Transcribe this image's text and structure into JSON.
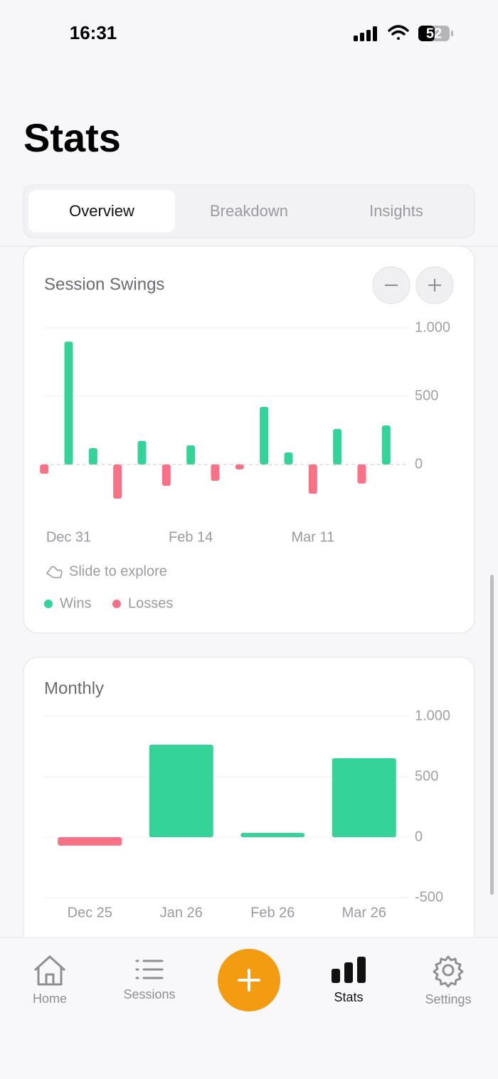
{
  "status_bar": {
    "time": "16:31",
    "battery": "52"
  },
  "header": {
    "title": "Stats"
  },
  "tabs": [
    "Overview",
    "Breakdown",
    "Insights"
  ],
  "chart_data": [
    {
      "type": "bar",
      "title": "Session Swings",
      "categories": [
        null,
        "Dec 31",
        null,
        null,
        null,
        null,
        "Feb 14",
        null,
        null,
        null,
        null,
        "Mar 11",
        null,
        null,
        null
      ],
      "series": [
        {
          "name": "Wins",
          "color": "#34d399",
          "values": [
            null,
            900,
            120,
            null,
            172,
            null,
            140,
            null,
            null,
            422,
            88,
            null,
            260,
            null,
            286
          ]
        },
        {
          "name": "Losses",
          "color": "#f87186",
          "values": [
            -68,
            null,
            null,
            -250,
            null,
            -156,
            null,
            -120,
            -36,
            null,
            null,
            -214,
            null,
            -140,
            null
          ]
        }
      ],
      "ylim": [
        -500,
        1000
      ],
      "yticks": [
        {
          "value": 1000,
          "label": "1.000"
        },
        500,
        0
      ],
      "grid": true,
      "hint": "Slide to explore"
    },
    {
      "type": "bar",
      "title": "Monthly",
      "categories": [
        "Dec 25",
        "Jan 26",
        "Feb 26",
        "Mar 26"
      ],
      "values": [
        -70,
        765,
        35,
        653
      ],
      "color": "#34d399",
      "negative_color": "#f87186",
      "ylim": [
        -500,
        1000
      ],
      "yticks": [
        {
          "value": 1000,
          "label": "1.000"
        },
        500,
        0,
        -500
      ],
      "grid": true
    }
  ],
  "tab_bar": [
    "Home",
    "Sessions",
    "Stats",
    "Settings"
  ]
}
